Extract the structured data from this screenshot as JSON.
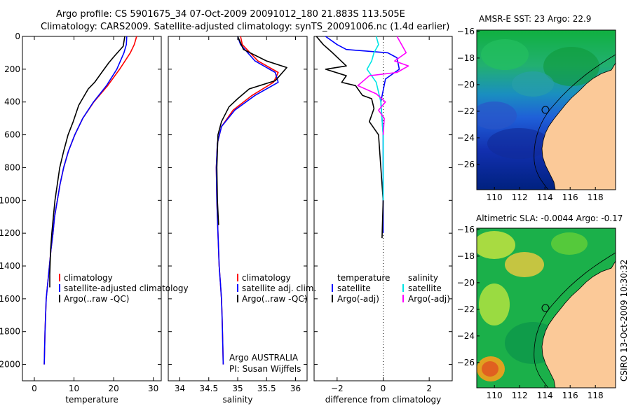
{
  "header": {
    "line1": "Argo profile: CS 5901675_34 07-Oct-2009 20091012_180 21.883S 113.505E",
    "line2": "Climatology: CARS2009. Satellite-adjusted climatology: synTS_20091006.nc (1.4d earlier)"
  },
  "side_stamp": "CSIRO 13-Oct-2009 10:30:32",
  "colors": {
    "climatology": "#ff0000",
    "satellite": "#0000ff",
    "argo": "#000000",
    "salinity_satellite": "#00e5e5",
    "salinity_argo": "#ff00ff",
    "land": "#fbc998",
    "deep_ocean": "#00217f"
  },
  "chart_data": [
    {
      "id": "temperature",
      "type": "line",
      "xlabel": "temperature",
      "ylabel": "",
      "xlim": [
        -3,
        32
      ],
      "ylim": [
        2100,
        0
      ],
      "xticks": [
        0,
        10,
        20,
        30
      ],
      "yticks": [
        0,
        200,
        400,
        600,
        800,
        1000,
        1200,
        1400,
        1600,
        1800,
        2000
      ],
      "legend": [
        "climatology",
        "satellite-adjusted climatology",
        "Argo(..raw -QC)"
      ],
      "series": [
        {
          "name": "climatology",
          "color": "#ff0000",
          "x": [
            25.8,
            25.2,
            24.2,
            21.5,
            18.5,
            15.0,
            12.2,
            10.2,
            8.6,
            7.4,
            6.5,
            5.8,
            5.1,
            4.7,
            4.2,
            3.8,
            3.4,
            3.0,
            2.7,
            2.5
          ],
          "y": [
            0,
            50,
            100,
            200,
            300,
            400,
            500,
            600,
            700,
            800,
            900,
            1000,
            1100,
            1200,
            1300,
            1400,
            1500,
            1600,
            1800,
            2000
          ]
        },
        {
          "name": "satellite-adjusted climatology",
          "color": "#0000ff",
          "x": [
            23.3,
            23.2,
            22.6,
            20.8,
            18.2,
            14.9,
            12.2,
            10.2,
            8.6,
            7.4,
            6.5,
            5.8,
            5.1,
            4.7,
            4.2,
            3.8,
            3.4,
            3.0,
            2.7,
            2.5
          ],
          "y": [
            0,
            50,
            100,
            200,
            300,
            400,
            500,
            600,
            700,
            800,
            900,
            1000,
            1100,
            1200,
            1300,
            1400,
            1500,
            1600,
            1800,
            2000
          ]
        },
        {
          "name": "Argo(..raw -QC)",
          "color": "#000000",
          "x": [
            22.8,
            22.4,
            20.2,
            18.8,
            17.0,
            15.2,
            13.6,
            11.2,
            9.8,
            8.5,
            7.4,
            6.4,
            5.8,
            5.2,
            4.8,
            4.4,
            4.1,
            3.9,
            3.9
          ],
          "y": [
            0,
            60,
            120,
            160,
            220,
            280,
            320,
            420,
            520,
            600,
            700,
            800,
            900,
            1000,
            1100,
            1200,
            1300,
            1450,
            1530
          ]
        }
      ]
    },
    {
      "id": "salinity",
      "type": "line",
      "xlabel": "salinity",
      "xlim": [
        33.8,
        36.2
      ],
      "ylim": [
        2100,
        0
      ],
      "xticks": [
        34,
        34.5,
        35,
        35.5,
        36
      ],
      "yticks": [
        0,
        200,
        400,
        600,
        800,
        1000,
        1200,
        1400,
        1600,
        1800,
        2000
      ],
      "legend": [
        "climatology",
        "satellite adj. clim.",
        "Argo(..raw -QC)"
      ],
      "annotation": [
        "Argo AUSTRALIA",
        "PI: Susan Wijffels"
      ],
      "series": [
        {
          "name": "climatology",
          "color": "#ff0000",
          "x": [
            35.05,
            35.08,
            35.35,
            35.7,
            35.62,
            35.25,
            34.92,
            34.72,
            34.65,
            34.63,
            34.64,
            34.66,
            34.68,
            34.7,
            34.72,
            34.73,
            34.74,
            34.75
          ],
          "y": [
            0,
            50,
            150,
            220,
            280,
            360,
            450,
            550,
            650,
            800,
            1000,
            1200,
            1400,
            1500,
            1600,
            1700,
            1850,
            2000
          ]
        },
        {
          "name": "satellite adj. clim.",
          "color": "#0000ff",
          "x": [
            35.0,
            35.05,
            35.3,
            35.65,
            35.7,
            35.3,
            34.95,
            34.72,
            34.65,
            34.63,
            34.64,
            34.66,
            34.68,
            34.7,
            34.72,
            34.73,
            34.74,
            34.75
          ],
          "y": [
            0,
            50,
            150,
            220,
            280,
            360,
            450,
            550,
            650,
            800,
            1000,
            1200,
            1400,
            1500,
            1600,
            1700,
            1850,
            2000
          ]
        },
        {
          "name": "Argo(..raw -QC)",
          "color": "#000000",
          "x": [
            35.0,
            35.1,
            35.5,
            35.85,
            35.65,
            35.2,
            35.0,
            34.85,
            34.72,
            34.66,
            34.65,
            34.64,
            34.65,
            34.67
          ],
          "y": [
            0,
            80,
            150,
            190,
            270,
            320,
            380,
            430,
            520,
            600,
            700,
            800,
            1000,
            1150
          ]
        }
      ]
    },
    {
      "id": "difference",
      "type": "line",
      "xlabel": "difference from climatology",
      "xlim": [
        -3,
        3
      ],
      "ylim": [
        2100,
        0
      ],
      "xticks": [
        -2,
        0,
        2
      ],
      "yticks": [
        0,
        200,
        400,
        600,
        800,
        1000,
        1200,
        1400,
        1600,
        1800,
        2000
      ],
      "legend_left": {
        "title": "temperature",
        "items": [
          "satellite",
          "Argo(-adj)"
        ]
      },
      "legend_right": {
        "title": "salinity",
        "items": [
          "satellite",
          "Argo(-adj)"
        ]
      },
      "series": [
        {
          "name": "temperature satellite",
          "color": "#0000ff",
          "x": [
            -2.5,
            -2.0,
            -1.6,
            0.2,
            0.6,
            0.7,
            0.1,
            -0.1,
            0.0,
            0.0,
            0.0,
            0.0
          ],
          "y": [
            0,
            50,
            80,
            100,
            130,
            200,
            260,
            400,
            600,
            800,
            1000,
            1200
          ]
        },
        {
          "name": "temperature Argo(-adj)",
          "color": "#000000",
          "x": [
            -2.9,
            -2.6,
            -2.2,
            -1.6,
            -2.5,
            -1.6,
            -1.8,
            -1.2,
            -0.9,
            -0.5,
            -0.4,
            -0.6,
            -0.2,
            -0.1,
            0.0,
            -0.05
          ],
          "y": [
            0,
            50,
            100,
            180,
            200,
            240,
            280,
            300,
            360,
            380,
            440,
            520,
            600,
            800,
            1000,
            1230
          ]
        },
        {
          "name": "salinity satellite",
          "color": "#00e5e5",
          "x": [
            -0.3,
            -0.2,
            -0.4,
            -0.5,
            -0.7,
            -0.3,
            -0.1,
            0.0,
            0.0,
            0.0
          ],
          "y": [
            0,
            50,
            100,
            150,
            200,
            280,
            400,
            600,
            800,
            1000
          ]
        },
        {
          "name": "salinity Argo(-adj)",
          "color": "#ff00ff",
          "x": [
            0.6,
            0.8,
            1.0,
            0.5,
            1.1,
            0.6,
            -0.6,
            -1.1,
            -0.3,
            0.1,
            -0.2,
            0.05,
            0.0
          ],
          "y": [
            0,
            50,
            100,
            150,
            180,
            220,
            240,
            300,
            350,
            400,
            450,
            500,
            600
          ]
        }
      ]
    }
  ],
  "maps": [
    {
      "id": "sst-map",
      "title": "AMSR-E SST: 23 Argo: 22.9",
      "lon_ticks": [
        "110",
        "112",
        "114",
        "116",
        "118"
      ],
      "lat_ticks": [
        "-16",
        "-18",
        "-20",
        "-22",
        "-24",
        "-26"
      ]
    },
    {
      "id": "sla-map",
      "title": "Altimetric SLA: -0.0044 Argo: -0.17",
      "lon_ticks": [
        "110",
        "112",
        "114",
        "116",
        "118"
      ],
      "lat_ticks": [
        "-16",
        "-18",
        "-20",
        "-22",
        "-24",
        "-26"
      ]
    }
  ]
}
